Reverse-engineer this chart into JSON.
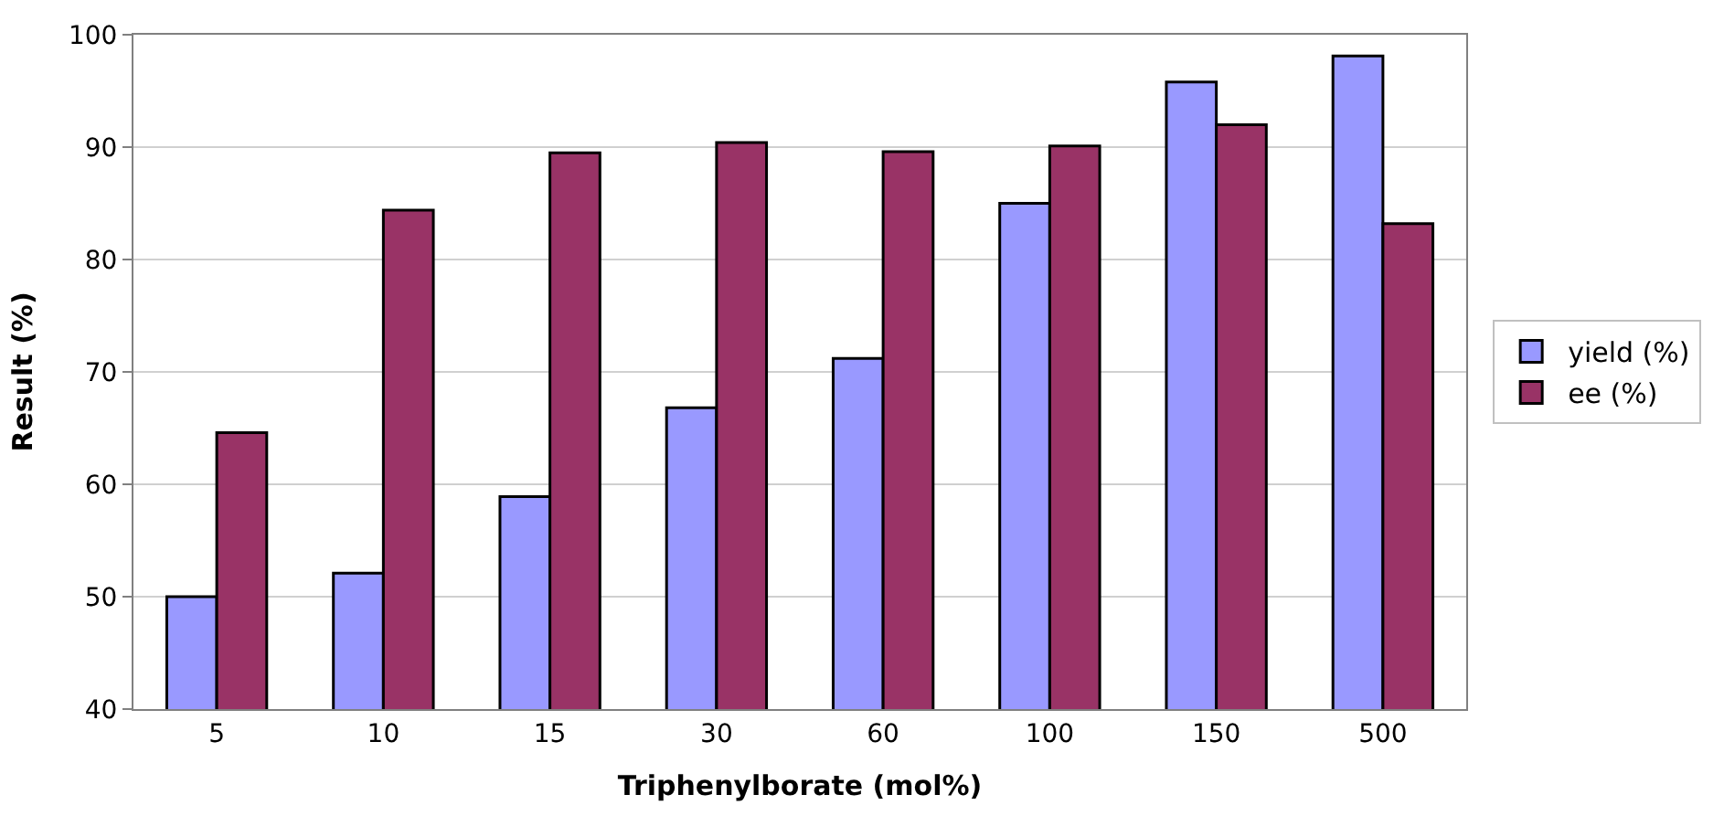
{
  "chart_data": {
    "type": "bar",
    "xlabel": "Triphenylborate (mol%)",
    "ylabel": "Result (%)",
    "categories": [
      "5",
      "10",
      "15",
      "30",
      "60",
      "100",
      "150",
      "500"
    ],
    "series": [
      {
        "name": "yield (%)",
        "color": "#9999ff",
        "values": [
          50.0,
          52.1,
          58.9,
          66.8,
          71.2,
          85.0,
          95.8,
          98.1
        ]
      },
      {
        "name": "ee (%)",
        "color": "#993366",
        "values": [
          64.6,
          84.4,
          89.5,
          90.4,
          89.6,
          90.1,
          92.0,
          83.2
        ]
      }
    ],
    "ylim": [
      40,
      100
    ],
    "yticks": [
      40,
      50,
      60,
      70,
      80,
      90,
      100
    ],
    "grid": "y",
    "legend": "right"
  }
}
